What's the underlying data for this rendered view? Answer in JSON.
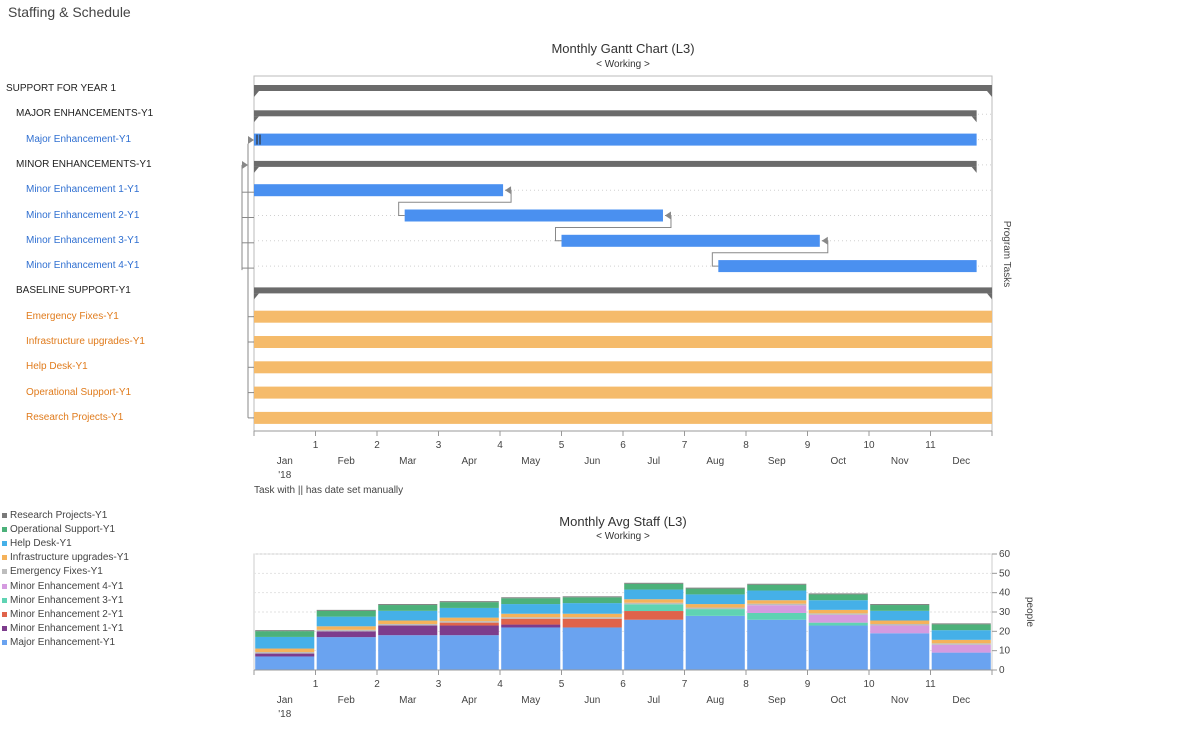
{
  "app": {
    "title": "Staffing & Schedule"
  },
  "gantt": {
    "title": "Monthly Gantt Chart  (L3)",
    "subtitle": "< Working >",
    "side_label": "Program Tasks",
    "note": "Task with || has date set manually",
    "colors": {
      "summary": "#6b6b6b",
      "enhancement": "#4a90f0",
      "support": "#f5bb6b",
      "connector": "#888888"
    },
    "tasks": [
      {
        "name": "SUPPORT FOR YEAR 1",
        "level": 0,
        "type": "summary",
        "start": 0,
        "end": 12
      },
      {
        "name": "MAJOR ENHANCEMENTS-Y1",
        "level": 1,
        "type": "summary",
        "start": 0,
        "end": 11.75
      },
      {
        "name": "Major Enhancement-Y1",
        "level": 2,
        "type": "enhancement",
        "start": 0,
        "end": 11.75,
        "manual": true
      },
      {
        "name": "MINOR ENHANCEMENTS-Y1",
        "level": 1,
        "type": "summary",
        "start": 0,
        "end": 11.75
      },
      {
        "name": "Minor Enhancement 1-Y1",
        "level": 2,
        "type": "enhancement",
        "start": 0,
        "end": 4.05
      },
      {
        "name": "Minor Enhancement  2-Y1",
        "level": 2,
        "type": "enhancement",
        "start": 2.45,
        "end": 6.65
      },
      {
        "name": "Minor Enhancement 3-Y1",
        "level": 2,
        "type": "enhancement",
        "start": 5.0,
        "end": 9.2
      },
      {
        "name": "Minor Enhancement 4-Y1",
        "level": 2,
        "type": "enhancement",
        "start": 7.55,
        "end": 11.75
      },
      {
        "name": "BASELINE SUPPORT-Y1",
        "level": 1,
        "type": "summary",
        "start": 0,
        "end": 12
      },
      {
        "name": "Emergency Fixes-Y1",
        "level": 2,
        "type": "support",
        "start": 0,
        "end": 12
      },
      {
        "name": "Infrastructure upgrades-Y1",
        "level": 2,
        "type": "support",
        "start": 0,
        "end": 12
      },
      {
        "name": "Help Desk-Y1",
        "level": 2,
        "type": "support",
        "start": 0,
        "end": 12
      },
      {
        "name": "Operational Support-Y1",
        "level": 2,
        "type": "support",
        "start": 0,
        "end": 12
      },
      {
        "name": "Research Projects-Y1",
        "level": 2,
        "type": "support",
        "start": 0,
        "end": 12
      }
    ]
  },
  "months": [
    "Jan",
    "Feb",
    "Mar",
    "Apr",
    "May",
    "Jun",
    "Jul",
    "Aug",
    "Sep",
    "Oct",
    "Nov",
    "Dec"
  ],
  "year_label": "'18",
  "tick_numbers": [
    "1",
    "2",
    "3",
    "4",
    "5",
    "6",
    "7",
    "8",
    "9",
    "10",
    "11"
  ],
  "chart_data": {
    "type": "bar",
    "stacked": true,
    "title": "Monthly Avg Staff  (L3)",
    "subtitle": "< Working >",
    "ylabel": "people",
    "ylim": [
      0,
      60
    ],
    "yticks": [
      "0",
      "10",
      "20",
      "30",
      "40",
      "50",
      "60"
    ],
    "categories": [
      "Jan",
      "Feb",
      "Mar",
      "Apr",
      "May",
      "Jun",
      "Jul",
      "Aug",
      "Sep",
      "Oct",
      "Nov",
      "Dec"
    ],
    "legend_position": "left",
    "series": [
      {
        "name": "Major Enhancement-Y1",
        "color": "#6aa3f0",
        "values": [
          7,
          17,
          18,
          18,
          22,
          22,
          26,
          28,
          26,
          23,
          19,
          9
        ]
      },
      {
        "name": "Minor Enhancement 1-Y1",
        "color": "#7d3c8c",
        "values": [
          1.5,
          3,
          5,
          5,
          1.5,
          0,
          0,
          0,
          0,
          0,
          0,
          0
        ]
      },
      {
        "name": "Minor Enhancement  2-Y1",
        "color": "#e0634a",
        "values": [
          0,
          0,
          0,
          1.5,
          3,
          4.5,
          4.5,
          0,
          0,
          0,
          0,
          0
        ]
      },
      {
        "name": "Minor Enhancement 3-Y1",
        "color": "#5fd3b3",
        "values": [
          0,
          0,
          0,
          0,
          0,
          0,
          3.5,
          3.5,
          3.5,
          1.5,
          0,
          0
        ]
      },
      {
        "name": "Minor Enhancement 4-Y1",
        "color": "#d59be0",
        "values": [
          0,
          0,
          0,
          0,
          0,
          0,
          0,
          0,
          4,
          4,
          4,
          4
        ]
      },
      {
        "name": "Emergency Fixes-Y1",
        "color": "#bdbdbd",
        "values": [
          0.8,
          0.8,
          0.8,
          0.8,
          0.8,
          0.8,
          0.8,
          0.8,
          0.8,
          0.8,
          0.8,
          0.8
        ]
      },
      {
        "name": "Infrastructure upgrades-Y1",
        "color": "#f5b25a",
        "values": [
          1.8,
          1.8,
          1.8,
          1.8,
          1.8,
          1.8,
          1.8,
          1.8,
          1.8,
          1.8,
          1.8,
          1.8
        ]
      },
      {
        "name": "Help Desk-Y1",
        "color": "#45b0e8",
        "values": [
          6,
          5,
          5,
          5,
          5,
          5.5,
          5,
          5,
          5,
          5,
          5,
          5
        ]
      },
      {
        "name": "Operational Support-Y1",
        "color": "#4cb17a",
        "values": [
          3,
          3,
          3,
          3,
          3,
          3,
          3,
          3,
          3,
          3,
          3,
          3
        ]
      },
      {
        "name": "Research Projects-Y1",
        "color": "#7a7a7a",
        "values": [
          0.5,
          0.5,
          0.5,
          0.5,
          0.5,
          0.5,
          0.5,
          0.5,
          0.5,
          0.5,
          0.5,
          0.5
        ]
      }
    ]
  }
}
